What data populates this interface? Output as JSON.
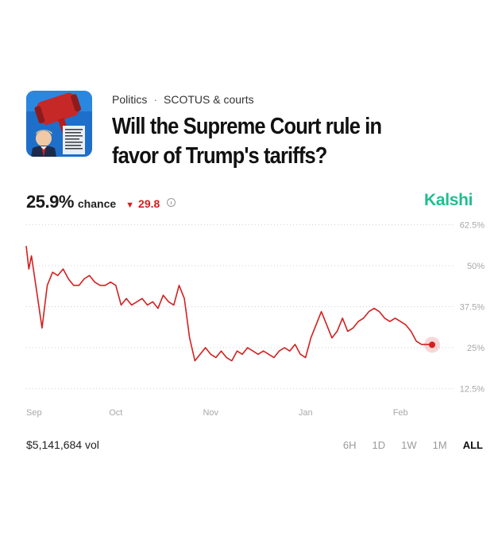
{
  "market": {
    "breadcrumb": [
      "Politics",
      "SCOTUS & courts"
    ],
    "breadcrumb_separator": "·",
    "title": "Will the Supreme Court rule in favor of Trump's tariffs?",
    "chance_value": "25.9%",
    "chance_label": "chance",
    "change_arrow": "▼",
    "change_value": "29.8",
    "brand": "Kalshi",
    "volume": "$5,141,684 vol"
  },
  "time_ranges": [
    "6H",
    "1D",
    "1W",
    "1M",
    "ALL"
  ],
  "active_range": "ALL",
  "thumbnail_icon": "gavel-and-trump-photo",
  "colors": {
    "line": "#d32020",
    "brand": "#1fbf8e",
    "grid": "#cfcfcf",
    "axis_text": "#a8a8a8"
  },
  "chart_data": {
    "type": "line",
    "title": "",
    "xlabel": "",
    "ylabel": "",
    "x_ticks": [
      "Sep",
      "Oct",
      "Nov",
      "Jan",
      "Feb"
    ],
    "y_ticks": [
      "62.5%",
      "50%",
      "37.5%",
      "25%",
      "12.5%"
    ],
    "ylim": [
      9,
      66
    ],
    "grid": "horizontal dotted",
    "series": [
      {
        "values": [
          [
            0,
            56
          ],
          [
            0.5,
            49
          ],
          [
            1,
            53
          ],
          [
            2,
            42
          ],
          [
            3,
            31
          ],
          [
            4,
            44
          ],
          [
            5,
            48
          ],
          [
            6,
            47
          ],
          [
            7,
            49
          ],
          [
            8,
            46
          ],
          [
            9,
            44
          ],
          [
            10,
            44
          ],
          [
            11,
            46
          ],
          [
            12,
            47
          ],
          [
            13,
            45
          ],
          [
            14,
            44
          ],
          [
            15,
            44
          ],
          [
            16,
            45
          ],
          [
            17,
            44
          ],
          [
            18,
            38
          ],
          [
            19,
            40
          ],
          [
            20,
            38
          ],
          [
            21,
            39
          ],
          [
            22,
            40
          ],
          [
            23,
            38
          ],
          [
            24,
            39
          ],
          [
            25,
            37
          ],
          [
            26,
            41
          ],
          [
            27,
            39
          ],
          [
            28,
            38
          ],
          [
            29,
            44
          ],
          [
            30,
            40
          ],
          [
            31,
            28
          ],
          [
            32,
            21
          ],
          [
            33,
            23
          ],
          [
            34,
            25
          ],
          [
            35,
            23
          ],
          [
            36,
            22
          ],
          [
            37,
            24
          ],
          [
            38,
            22
          ],
          [
            39,
            21
          ],
          [
            40,
            24
          ],
          [
            41,
            23
          ],
          [
            42,
            25
          ],
          [
            43,
            24
          ],
          [
            44,
            23
          ],
          [
            45,
            24
          ],
          [
            46,
            23
          ],
          [
            47,
            22
          ],
          [
            48,
            24
          ],
          [
            49,
            25
          ],
          [
            50,
            24
          ],
          [
            51,
            26
          ],
          [
            52,
            23
          ],
          [
            53,
            22
          ],
          [
            54,
            28
          ],
          [
            55,
            32
          ],
          [
            56,
            36
          ],
          [
            57,
            32
          ],
          [
            58,
            28
          ],
          [
            59,
            30
          ],
          [
            60,
            34
          ],
          [
            61,
            30
          ],
          [
            62,
            31
          ],
          [
            63,
            33
          ],
          [
            64,
            34
          ],
          [
            65,
            36
          ],
          [
            66,
            37
          ],
          [
            67,
            36
          ],
          [
            68,
            34
          ],
          [
            69,
            33
          ],
          [
            70,
            34
          ],
          [
            71,
            33
          ],
          [
            72,
            32
          ],
          [
            73,
            30
          ],
          [
            74,
            27
          ],
          [
            75,
            26
          ],
          [
            76,
            26
          ],
          [
            77,
            25.9
          ]
        ]
      }
    ],
    "x_tick_positions": [
      0,
      17,
      35,
      53,
      71
    ],
    "last_point": [
      77,
      25.9
    ]
  }
}
